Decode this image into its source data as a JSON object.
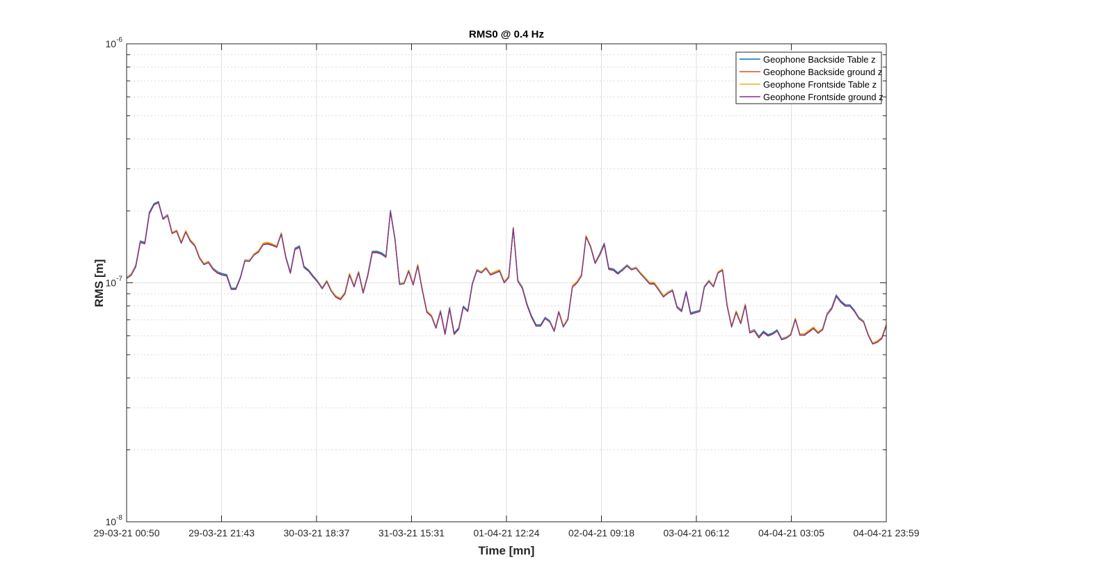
{
  "chart_data": {
    "type": "line",
    "title": "RMS0 @ 0.4 Hz",
    "xlabel": "Time [mn]",
    "ylabel": "RMS [m]",
    "y_scale": "log",
    "ylim": [
      1e-08,
      1e-06
    ],
    "y_ticks": [
      {
        "value": 1e-08,
        "base": "10",
        "exp": "-8"
      },
      {
        "value": 1e-07,
        "base": "10",
        "exp": "-7"
      },
      {
        "value": 1e-06,
        "base": "10",
        "exp": "-6"
      }
    ],
    "x_tick_labels": [
      "29-03-21 00:50",
      "29-03-21 21:43",
      "30-03-21 18:37",
      "31-03-21 15:31",
      "01-04-21 12:24",
      "02-04-21 09:18",
      "03-04-21 06:12",
      "04-04-21 03:05",
      "04-04-21 23:59"
    ],
    "grid": true,
    "legend_position": "top-right",
    "series": [
      {
        "name": "Geophone Backside Table z",
        "color": "#0072BD",
        "offset": 0.012
      },
      {
        "name": "Geophone Backside ground z",
        "color": "#D95319",
        "offset": -0.004
      },
      {
        "name": "Geophone Frontside Table z",
        "color": "#EDB120",
        "offset": 0.006
      },
      {
        "name": "Geophone Frontside ground z",
        "color": "#7E2F8E",
        "offset": -0.012
      }
    ],
    "base_values_e7": [
      1.05,
      1.08,
      1.17,
      1.48,
      1.46,
      1.95,
      2.12,
      2.17,
      1.85,
      1.92,
      1.62,
      1.66,
      1.48,
      1.65,
      1.51,
      1.44,
      1.28,
      1.2,
      1.22,
      1.14,
      1.1,
      1.08,
      1.07,
      0.94,
      0.94,
      1.05,
      1.24,
      1.24,
      1.32,
      1.36,
      1.46,
      1.47,
      1.45,
      1.42,
      1.61,
      1.28,
      1.1,
      1.38,
      1.41,
      1.16,
      1.12,
      1.06,
      1.01,
      0.95,
      1.02,
      0.93,
      0.88,
      0.86,
      0.91,
      1.09,
      0.97,
      1.11,
      0.91,
      1.07,
      1.34,
      1.34,
      1.32,
      1.28,
      1.99,
      1.52,
      0.99,
      1.0,
      1.13,
      0.99,
      1.19,
      0.94,
      0.76,
      0.73,
      0.65,
      0.76,
      0.61,
      0.78,
      0.61,
      0.64,
      0.79,
      0.76,
      0.99,
      1.13,
      1.11,
      1.16,
      1.09,
      1.11,
      1.13,
      1.01,
      1.06,
      1.7,
      1.02,
      0.95,
      0.81,
      0.72,
      0.66,
      0.66,
      0.71,
      0.69,
      0.63,
      0.76,
      0.66,
      0.71,
      0.97,
      1.01,
      1.08,
      1.57,
      1.42,
      1.21,
      1.31,
      1.45,
      1.14,
      1.13,
      1.09,
      1.13,
      1.18,
      1.14,
      1.16,
      1.1,
      1.05,
      1.0,
      1.0,
      0.94,
      0.88,
      0.91,
      0.93,
      0.79,
      0.76,
      0.91,
      0.74,
      0.75,
      0.76,
      0.96,
      1.02,
      0.97,
      1.11,
      1.14,
      0.81,
      0.66,
      0.76,
      0.68,
      0.81,
      0.62,
      0.63,
      0.59,
      0.62,
      0.6,
      0.61,
      0.63,
      0.58,
      0.59,
      0.61,
      0.71,
      0.61,
      0.61,
      0.63,
      0.65,
      0.62,
      0.64,
      0.74,
      0.78,
      0.88,
      0.83,
      0.8,
      0.8,
      0.76,
      0.71,
      0.69,
      0.61,
      0.56,
      0.57,
      0.59,
      0.67
    ]
  }
}
